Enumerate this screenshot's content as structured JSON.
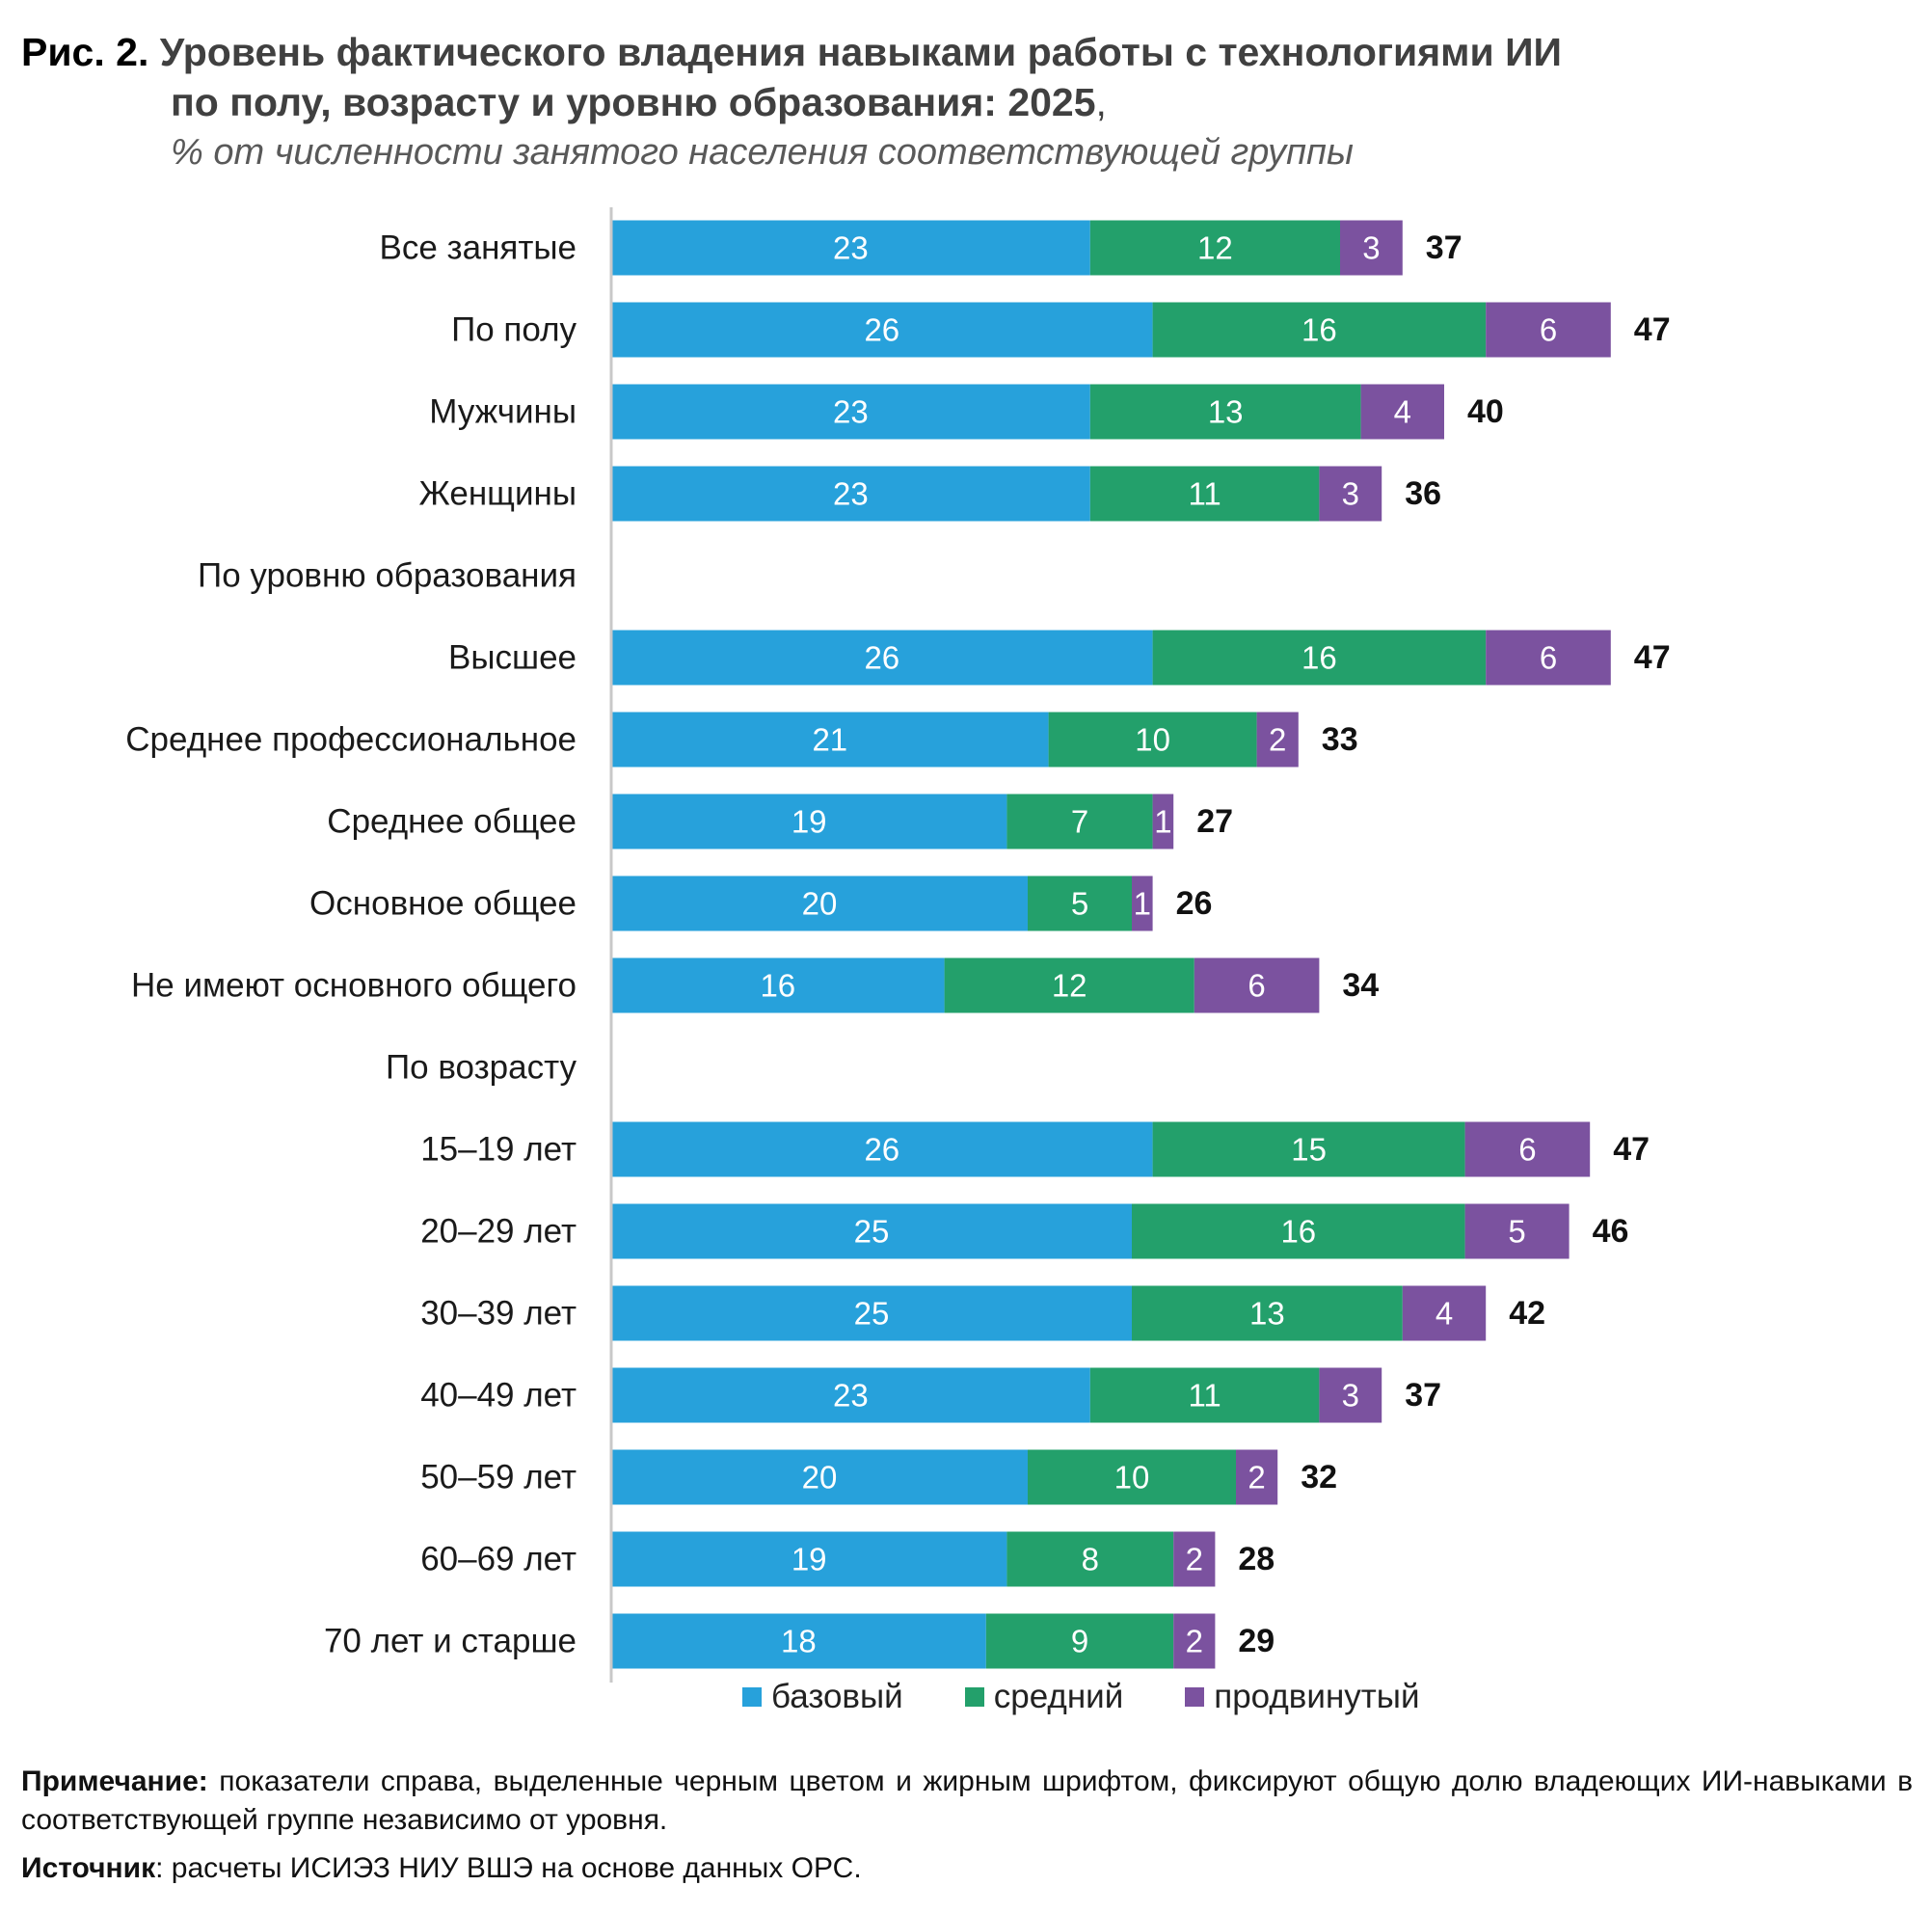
{
  "header": {
    "fig_label": "Рис. 2.",
    "title_line1": "Уровень фактического владения навыками работы с технологиями ИИ",
    "title_line2": "по полу, возрасту и уровню образования: 2025",
    "title_comma": ",",
    "subtitle": "% от численности занятого населения соответствующей группы"
  },
  "colors": {
    "base": "#27a1db",
    "mid": "#23a06b",
    "adv": "#7b529f",
    "axis": "#c8c8c8"
  },
  "chart_data": {
    "type": "bar",
    "orientation": "horizontal",
    "stacked": true,
    "title": "Уровень фактического владения навыками работы с технологиями ИИ по полу, возрасту и уровню образования: 2025",
    "subtitle": "% от численности занятого населения соответствующей группы",
    "categories": [
      "Все занятые",
      "По полу",
      "Мужчины",
      "Женщины",
      "По уровню образования",
      "Высшее",
      "Среднее профессиональное",
      "Среднее общее",
      "Основное общее",
      "Не имеют основного общего",
      "По возрасту",
      "15–19 лет",
      "20–29 лет",
      "30–39 лет",
      "40–49 лет",
      "50–59 лет",
      "60–69 лет",
      "70 лет и старше"
    ],
    "series": [
      {
        "name": "базовый",
        "color": "#27a1db",
        "values": [
          23,
          26,
          23,
          23,
          null,
          26,
          21,
          19,
          20,
          16,
          null,
          26,
          25,
          25,
          23,
          20,
          19,
          18
        ]
      },
      {
        "name": "средний",
        "color": "#23a06b",
        "values": [
          12,
          16,
          13,
          11,
          null,
          16,
          10,
          7,
          5,
          12,
          null,
          15,
          16,
          13,
          11,
          10,
          8,
          9
        ]
      },
      {
        "name": "продвинутый",
        "color": "#7b529f",
        "values": [
          3,
          6,
          4,
          3,
          null,
          6,
          2,
          1,
          1,
          6,
          null,
          6,
          5,
          4,
          3,
          2,
          2,
          2
        ]
      }
    ],
    "totals": [
      37,
      47,
      40,
      36,
      null,
      47,
      33,
      27,
      26,
      34,
      null,
      47,
      46,
      42,
      37,
      32,
      28,
      29
    ],
    "xlim": [
      0,
      48
    ],
    "grid": false,
    "legend_position": "bottom"
  },
  "footer": {
    "note_label": "Примечание:",
    "note_text": "показатели справа, выделенные черным цветом и жирным шрифтом, фиксируют общую долю владеющих ИИ-навыками в соответствующей группе независимо от уровня.",
    "source_label": "Источник",
    "source_text": ": расчеты ИСИЭЗ НИУ ВШЭ на основе данных ОРС."
  }
}
